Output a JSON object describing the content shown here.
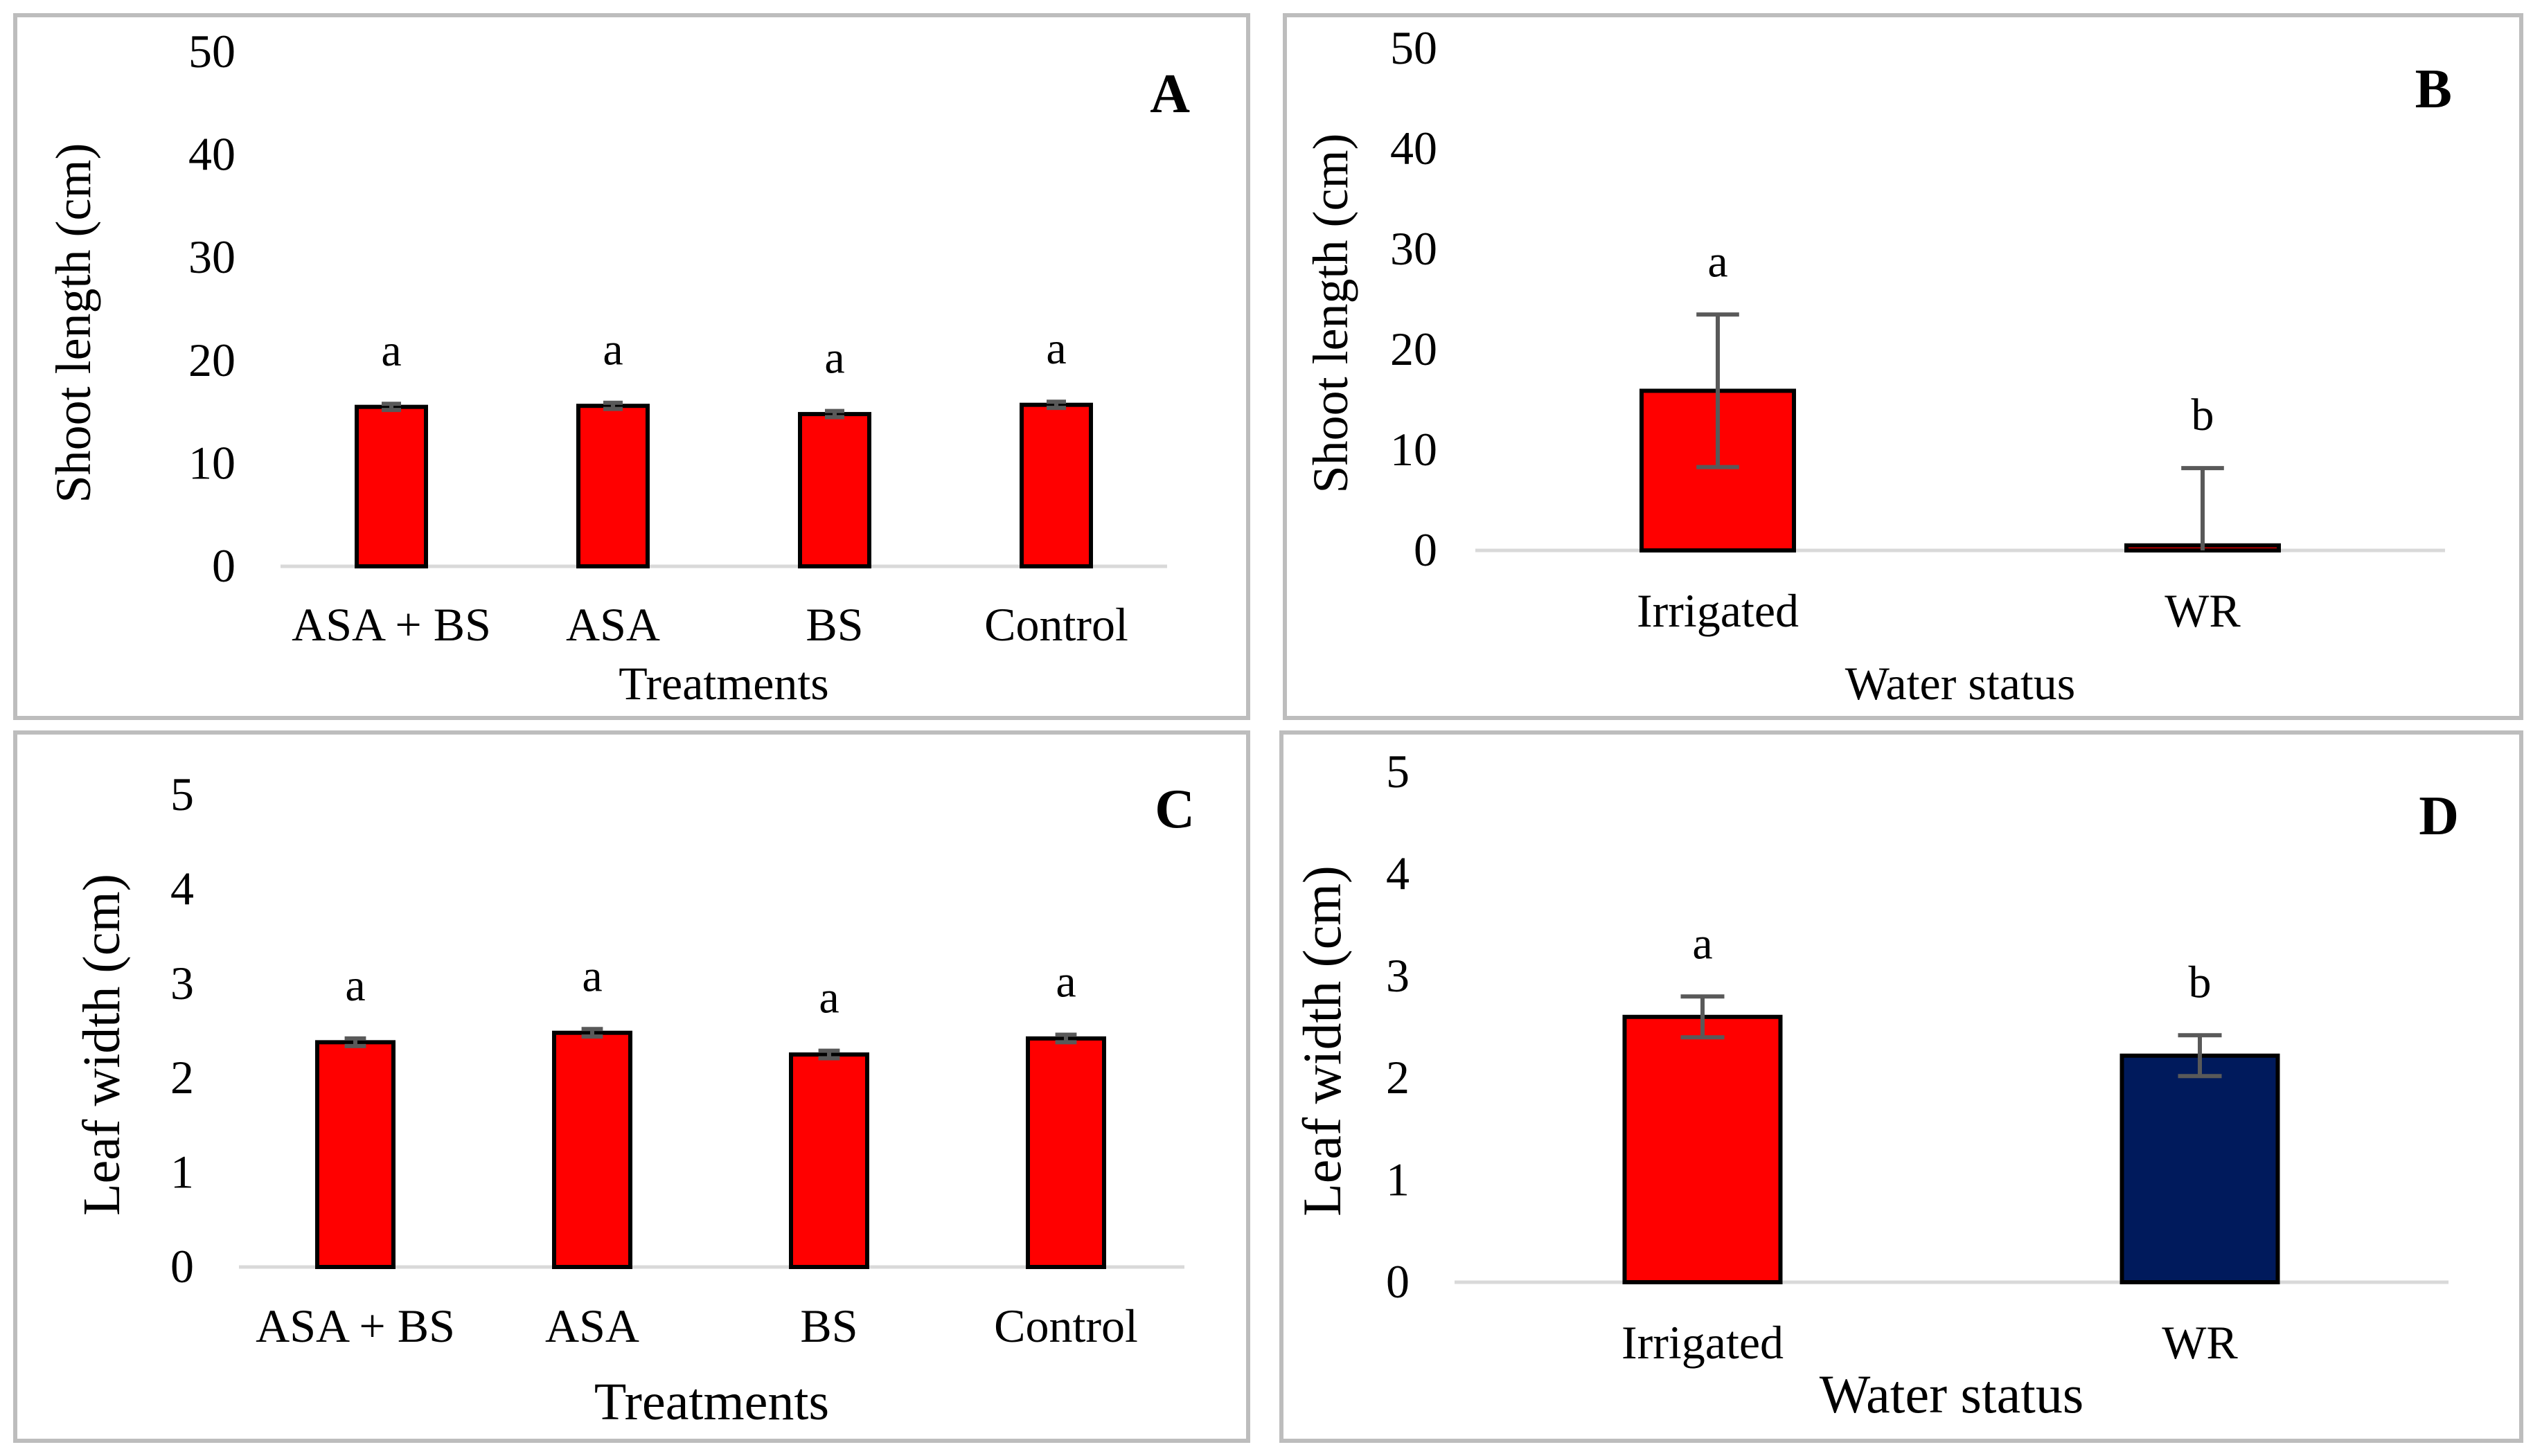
{
  "figure": {
    "panels_order": [
      "A",
      "B",
      "C",
      "D"
    ]
  },
  "chart_data": [
    {
      "panel_label": "A",
      "type": "bar",
      "title": "",
      "xlabel": "Treatments",
      "ylabel": "Shoot length (cm)",
      "categories": [
        "ASA + BS",
        "ASA",
        "BS",
        "Control"
      ],
      "values": [
        15.5,
        15.6,
        14.8,
        15.7
      ],
      "errors": [
        0.3,
        0.3,
        0.3,
        0.3
      ],
      "significance": [
        "a",
        "a",
        "a",
        "a"
      ],
      "colors": [
        "#ff0000",
        "#ff0000",
        "#ff0000",
        "#ff0000"
      ],
      "ylim": [
        0,
        50
      ],
      "yticks": [
        "0",
        "10",
        "20",
        "30",
        "40",
        "50"
      ],
      "grid": false,
      "legend": "none"
    },
    {
      "panel_label": "B",
      "type": "bar",
      "title": "",
      "xlabel": "Water status",
      "ylabel": "Shoot length (cm)",
      "categories": [
        "Irrigated",
        "WR"
      ],
      "values": [
        15.9,
        0.5
      ],
      "errors": [
        7.6,
        7.7
      ],
      "significance": [
        "a",
        "b"
      ],
      "colors": [
        "#ff0000",
        "#ff0000"
      ],
      "ylim": [
        0,
        50
      ],
      "yticks": [
        "0",
        "10",
        "20",
        "30",
        "40",
        "50"
      ],
      "grid": false,
      "legend": "none"
    },
    {
      "panel_label": "C",
      "type": "bar",
      "title": "",
      "xlabel": "Treatments",
      "ylabel": "Leaf width (cm)",
      "categories": [
        "ASA + BS",
        "ASA",
        "BS",
        "Control"
      ],
      "values": [
        2.38,
        2.48,
        2.25,
        2.42
      ],
      "errors": [
        0.04,
        0.04,
        0.04,
        0.04
      ],
      "significance": [
        "a",
        "a",
        "a",
        "a"
      ],
      "colors": [
        "#ff0000",
        "#ff0000",
        "#ff0000",
        "#ff0000"
      ],
      "ylim": [
        0,
        5
      ],
      "yticks": [
        "0",
        "1",
        "2",
        "3",
        "4",
        "5"
      ],
      "grid": false,
      "legend": "none"
    },
    {
      "panel_label": "D",
      "type": "bar",
      "title": "",
      "xlabel": "Water status",
      "ylabel": "Leaf width (cm)",
      "categories": [
        "Irrigated",
        "WR"
      ],
      "values": [
        2.6,
        2.22
      ],
      "errors": [
        0.2,
        0.2
      ],
      "significance": [
        "a",
        "b"
      ],
      "colors": [
        "#ff0000",
        "#001a5c"
      ],
      "ylim": [
        0,
        5
      ],
      "yticks": [
        "0",
        "1",
        "2",
        "3",
        "4",
        "5"
      ],
      "grid": false,
      "legend": "none"
    }
  ]
}
